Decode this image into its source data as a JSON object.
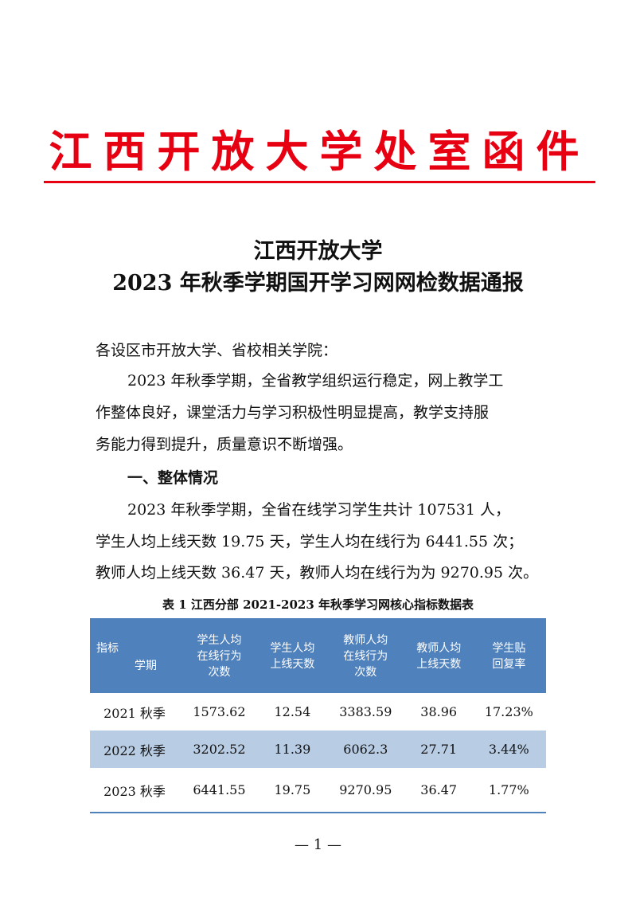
{
  "masthead": "江西开放大学处室函件",
  "colors": {
    "masthead": "#e60012",
    "table_header": "#4f81bd",
    "table_alt_row": "#b8cce4"
  },
  "title": {
    "line1": "江西开放大学",
    "line2": "2023 年秋季学期国开学习网网检数据通报"
  },
  "body": {
    "salutation": "各设区市开放大学、省校相关学院：",
    "para1": [
      "2023 年秋季学期，全省教学组织运行稳定，网上教学工",
      "作整体良好，课堂活力与学习积极性明显提高，教学支持服",
      "务能力得到提升，质量意识不断增强。"
    ],
    "heading1": "一、整体情况",
    "para2": [
      "2023 年秋季学期，全省在线学习学生共计 107531 人，",
      "学生人均上线天数 19.75 天，学生人均在线行为 6441.55 次；",
      "教师人均上线天数 36.47 天，教师人均在线行为为 9270.95 次。"
    ]
  },
  "table": {
    "caption": "表 1 江西分部 2021-2023 年秋季学习网核心指标数据表",
    "corner": {
      "top": "指标",
      "bottom": "学期"
    },
    "headers": [
      [
        "学生人均",
        "在线行为",
        "次数"
      ],
      [
        "学生人均",
        "上线天数"
      ],
      [
        "教师人均",
        "在线行为",
        "次数"
      ],
      [
        "教师人均",
        "上线天数"
      ],
      [
        "学生贴",
        "回复率"
      ]
    ],
    "rows": [
      [
        "2021 秋季",
        "1573.62",
        "12.54",
        "3383.59",
        "38.96",
        "17.23%"
      ],
      [
        "2022 秋季",
        "3202.52",
        "11.39",
        "6062.3",
        "27.71",
        "3.44%"
      ],
      [
        "2023 秋季",
        "6441.55",
        "19.75",
        "9270.95",
        "36.47",
        "1.77%"
      ]
    ]
  },
  "page_number": "— 1 —"
}
